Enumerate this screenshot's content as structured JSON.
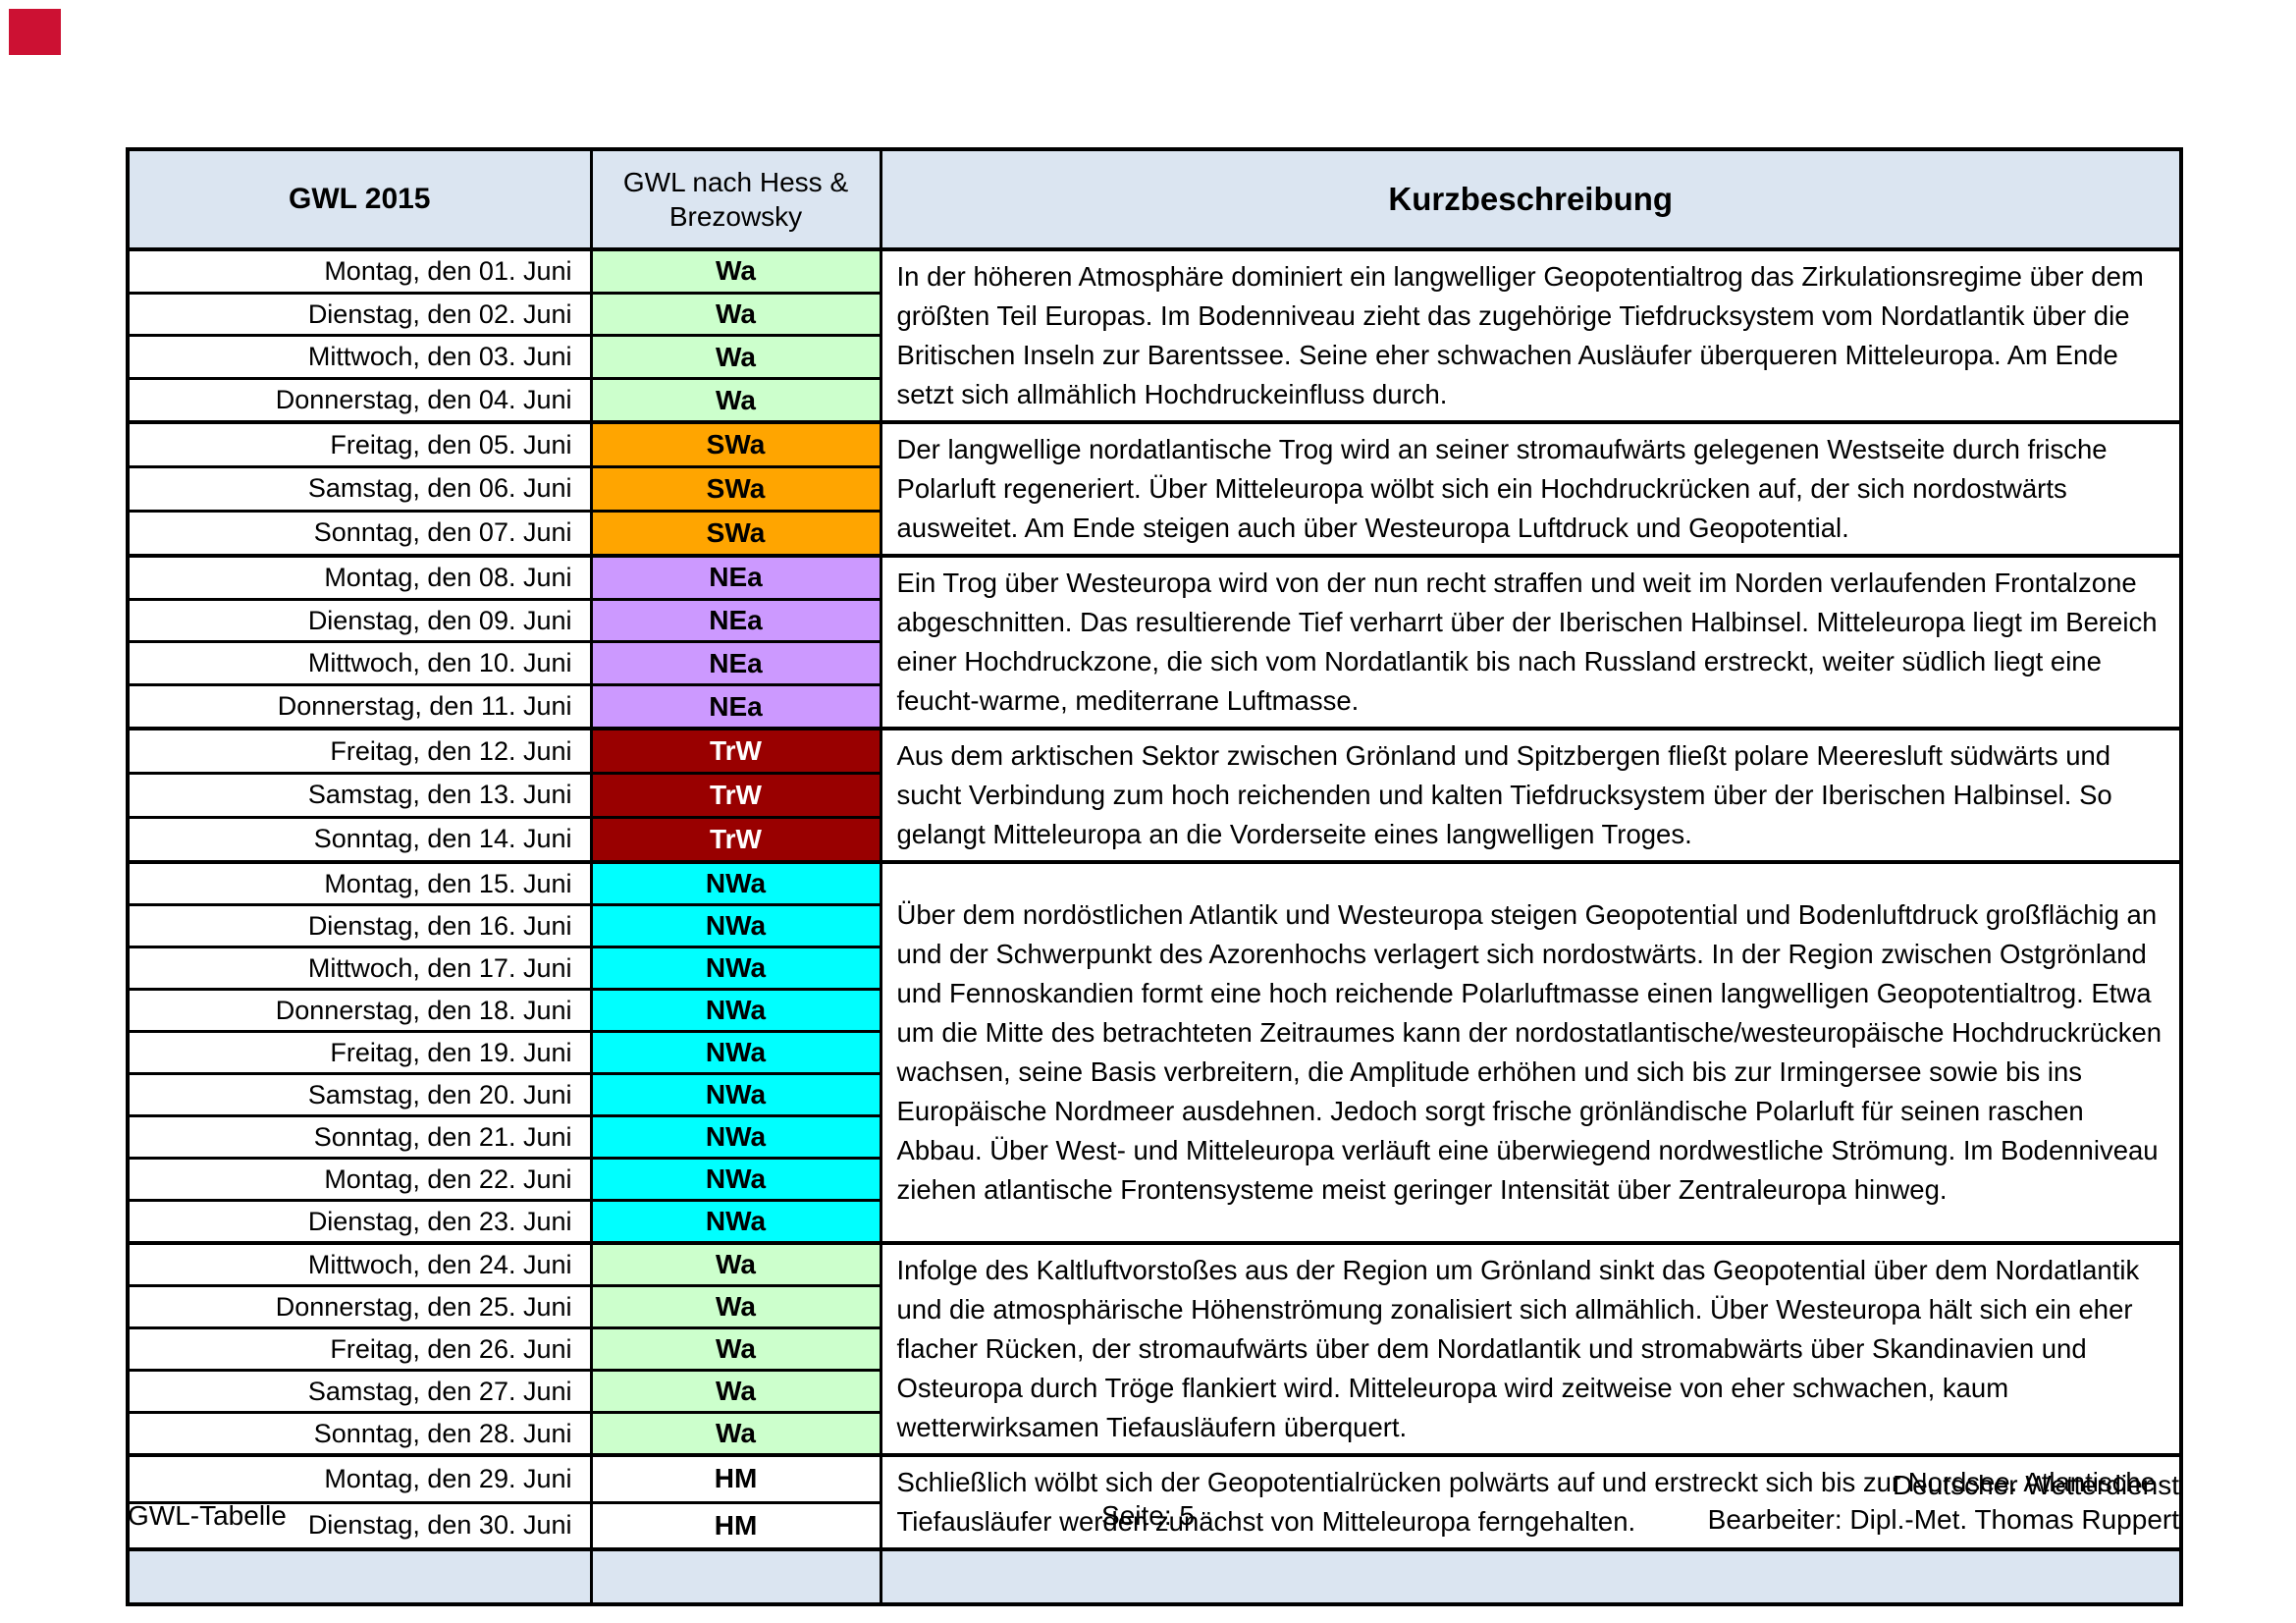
{
  "marker": {
    "color": "#cc1133"
  },
  "table": {
    "header": {
      "col1": "GWL 2015",
      "col2": "GWL nach Hess & Brezowsky",
      "col3": "Kurzbeschreibung",
      "bg": "#dbe5f1"
    },
    "blocks": [
      {
        "code": "Wa",
        "bg": "#ccffcc",
        "fg": "#000000",
        "dates": [
          "Montag, den 01. Juni",
          "Dienstag, den 02. Juni",
          "Mittwoch, den 03. Juni",
          "Donnerstag, den 04. Juni"
        ],
        "description": "In der höheren Atmosphäre dominiert ein langwelliger Geopotentialtrog das Zirkulationsregime über dem größten Teil Europas. Im Bodenniveau zieht das zugehörige Tiefdrucksystem vom Nordatlantik über die Britischen Inseln zur Barentssee. Seine eher schwachen Ausläufer überqueren Mitteleuropa. Am Ende setzt sich allmählich Hochdruckeinfluss durch."
      },
      {
        "code": "SWa",
        "bg": "#ffa500",
        "fg": "#000000",
        "dates": [
          "Freitag, den 05. Juni",
          "Samstag, den 06. Juni",
          "Sonntag, den 07. Juni"
        ],
        "description": "Der langwellige nordatlantische Trog wird an seiner stromaufwärts gelegenen Westseite durch frische Polarluft regeneriert. Über Mitteleuropa wölbt sich ein Hochdruckrücken auf, der sich nordostwärts ausweitet. Am Ende steigen auch über Westeuropa Luftdruck und Geopotential."
      },
      {
        "code": "NEa",
        "bg": "#cc99ff",
        "fg": "#000000",
        "dates": [
          "Montag, den 08. Juni",
          "Dienstag, den 09. Juni",
          "Mittwoch, den 10. Juni",
          "Donnerstag, den 11. Juni"
        ],
        "description": "Ein Trog über Westeuropa wird von der nun recht straffen und weit im Norden verlaufenden Frontalzone abgeschnitten. Das resultierende Tief verharrt über der Iberischen Halbinsel. Mitteleuropa liegt im Bereich einer Hochdruckzone, die sich vom Nordatlantik bis nach Russland erstreckt, weiter südlich liegt eine feucht-warme, mediterrane Luftmasse."
      },
      {
        "code": "TrW",
        "bg": "#990000",
        "fg": "#ffffff",
        "dates": [
          "Freitag, den 12. Juni",
          "Samstag, den 13. Juni",
          "Sonntag, den 14. Juni"
        ],
        "description": "Aus dem arktischen Sektor zwischen Grönland und Spitzbergen fließt polare Meeresluft südwärts und sucht Verbindung zum hoch reichenden und kalten Tiefdrucksystem über der Iberischen Halbinsel. So gelangt Mitteleuropa an die Vorderseite eines langwelligen Troges."
      },
      {
        "code": "NWa",
        "bg": "#00ffff",
        "fg": "#000000",
        "dates": [
          "Montag, den 15. Juni",
          "Dienstag, den 16. Juni",
          "Mittwoch, den 17. Juni",
          "Donnerstag, den 18. Juni",
          "Freitag, den 19. Juni",
          "Samstag, den 20. Juni",
          "Sonntag, den 21. Juni",
          "Montag, den 22. Juni",
          "Dienstag, den 23. Juni"
        ],
        "description": "Über dem nordöstlichen Atlantik und Westeuropa steigen Geopotential und Bodenluftdruck großflächig an und der Schwerpunkt des Azorenhochs verlagert sich nordostwärts. In der Region zwischen Ostgrönland und Fennoskandien formt eine hoch reichende Polarluftmasse einen langwelligen Geopotentialtrog. Etwa um die Mitte des betrachteten Zeitraumes kann der nordostatlantische/westeuropäische Hochdruckrücken wachsen, seine Basis verbreitern, die Amplitude erhöhen und sich bis zur Irmingersee sowie bis ins Europäische Nordmeer ausdehnen. Jedoch sorgt frische grönländische Polarluft für seinen raschen Abbau. Über West- und Mitteleuropa verläuft eine überwiegend nordwestliche Strömung. Im Bodenniveau ziehen atlantische Frontensysteme meist geringer Intensität über Zentraleuropa hinweg."
      },
      {
        "code": "Wa",
        "bg": "#ccffcc",
        "fg": "#000000",
        "dates": [
          "Mittwoch, den 24. Juni",
          "Donnerstag, den 25. Juni",
          "Freitag, den 26. Juni",
          "Samstag, den 27. Juni",
          "Sonntag, den 28. Juni"
        ],
        "description": "Infolge des Kaltluftvorstoßes aus der Region um Grönland sinkt das Geopotential über dem Nordatlantik und die atmosphärische Höhenströmung zonalisiert sich allmählich. Über Westeuropa hält sich ein eher flacher Rücken, der stromaufwärts über dem Nordatlantik und stromabwärts über Skandinavien und Osteuropa durch Tröge flankiert wird. Mitteleuropa wird zeitweise von eher schwachen, kaum wetterwirksamen Tiefausläufern überquert."
      },
      {
        "code": "HM",
        "bg": "#ffffff",
        "fg": "#000000",
        "dates": [
          "Montag, den 29. Juni",
          "Dienstag, den 30. Juni"
        ],
        "description": "Schließlich wölbt sich der Geopotentialrücken polwärts auf und erstreckt sich bis zur Nordsee. Atlantische Tiefausläufer werden zunächst von Mitteleuropa ferngehalten."
      }
    ]
  },
  "footer": {
    "doc_label": "GWL-Tabelle",
    "page_label": "Seite: 5",
    "org": "Deutscher Wetterdienst",
    "editor": "Bearbeiter: Dipl.-Met. Thomas Ruppert"
  }
}
